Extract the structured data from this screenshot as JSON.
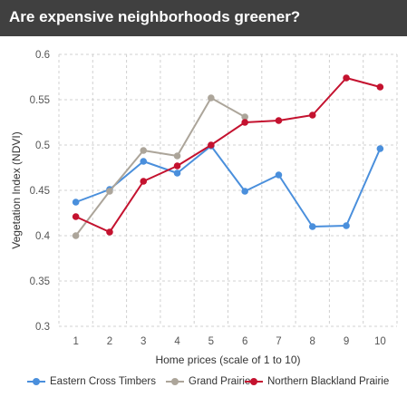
{
  "header": {
    "title": "Are expensive neighborhoods greener?"
  },
  "chart_data": {
    "type": "line",
    "title": "",
    "xlabel": "Home prices (scale of 1 to 10)",
    "ylabel": "Vegetation Index (NDVI)",
    "x": [
      1,
      2,
      3,
      4,
      5,
      6,
      7,
      8,
      9,
      10
    ],
    "x_tick_labels": [
      "1",
      "2",
      "3",
      "4",
      "5",
      "6",
      "7",
      "8",
      "9",
      "10"
    ],
    "ylim": [
      0.3,
      0.6
    ],
    "y_ticks": [
      0.3,
      0.35,
      0.4,
      0.45,
      0.5,
      0.55,
      0.6
    ],
    "y_tick_labels": [
      "0.3",
      "0.35",
      "0.4",
      "0.45",
      "0.5",
      "0.55",
      "0.6"
    ],
    "grid": "dashed, both axes",
    "legend_position": "bottom",
    "series": [
      {
        "name": "Eastern Cross Timbers",
        "color": "#4a8fdc",
        "values": [
          0.437,
          0.451,
          0.482,
          0.469,
          0.499,
          0.449,
          0.467,
          0.41,
          0.411,
          0.496
        ]
      },
      {
        "name": "Grand Prairie",
        "color": "#aca59a",
        "values": [
          0.4,
          0.449,
          0.494,
          0.488,
          0.552,
          0.531,
          null,
          null,
          null,
          null
        ]
      },
      {
        "name": "Northern Blackland Prairie",
        "color": "#c4122f",
        "values": [
          0.421,
          0.404,
          0.46,
          0.477,
          0.5,
          0.525,
          0.527,
          0.533,
          0.574,
          0.564
        ]
      }
    ]
  }
}
